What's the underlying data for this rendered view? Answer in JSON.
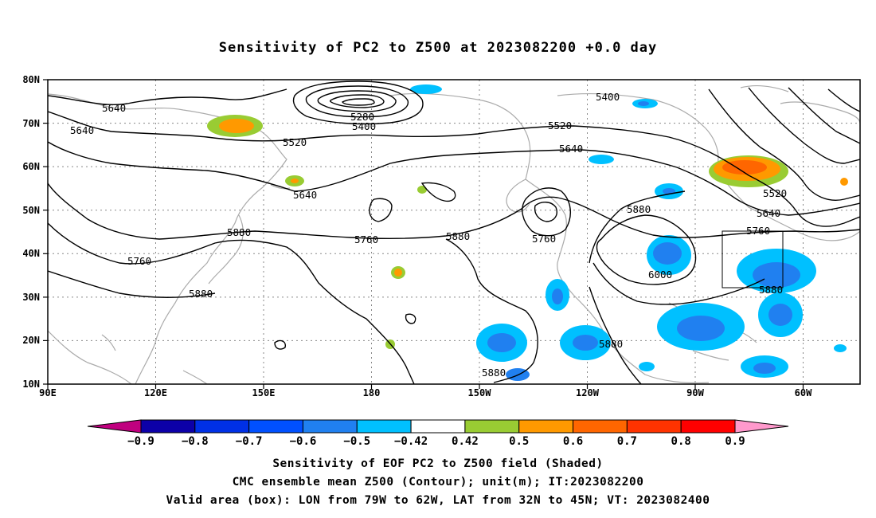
{
  "title": "Sensitivity of PC2 to Z500 at 2023082200 +0.0 day",
  "map": {
    "lat_labels": [
      "80N",
      "70N",
      "60N",
      "50N",
      "40N",
      "30N",
      "20N",
      "10N"
    ],
    "lon_labels": [
      "90E",
      "120E",
      "150E",
      "180",
      "150W",
      "120W",
      "90W",
      "60W"
    ],
    "contour_labels": [
      "5640",
      "5640",
      "5400",
      "5280",
      "5520",
      "5520",
      "5640",
      "5640",
      "5400",
      "5520",
      "5760",
      "5880",
      "5760",
      "5880",
      "5760",
      "5880",
      "5880",
      "6000",
      "5760",
      "5640",
      "5880",
      "5880",
      "5880"
    ]
  },
  "colorbar": {
    "labels": [
      "-0.9",
      "-0.8",
      "-0.7",
      "-0.6",
      "-0.5",
      "-0.42",
      "0.42",
      "0.5",
      "0.6",
      "0.7",
      "0.8",
      "0.9"
    ],
    "colors": [
      "#c0007f",
      "#0c00a8",
      "#0030e6",
      "#0050ff",
      "#2080f0",
      "#00c0ff",
      "#ffffff",
      "#99cc33",
      "#ff9900",
      "#ff6600",
      "#ff3300",
      "#ff0000",
      "#ff99cc"
    ]
  },
  "footer": {
    "line1": "Sensitivity of EOF PC2 to Z500 field (Shaded)",
    "line2": "CMC ensemble mean Z500 (Contour); unit(m); IT:2023082200",
    "line3": "Valid area (box): LON from 79W to 62W, LAT from 32N to 45N; VT: 2023082400"
  }
}
